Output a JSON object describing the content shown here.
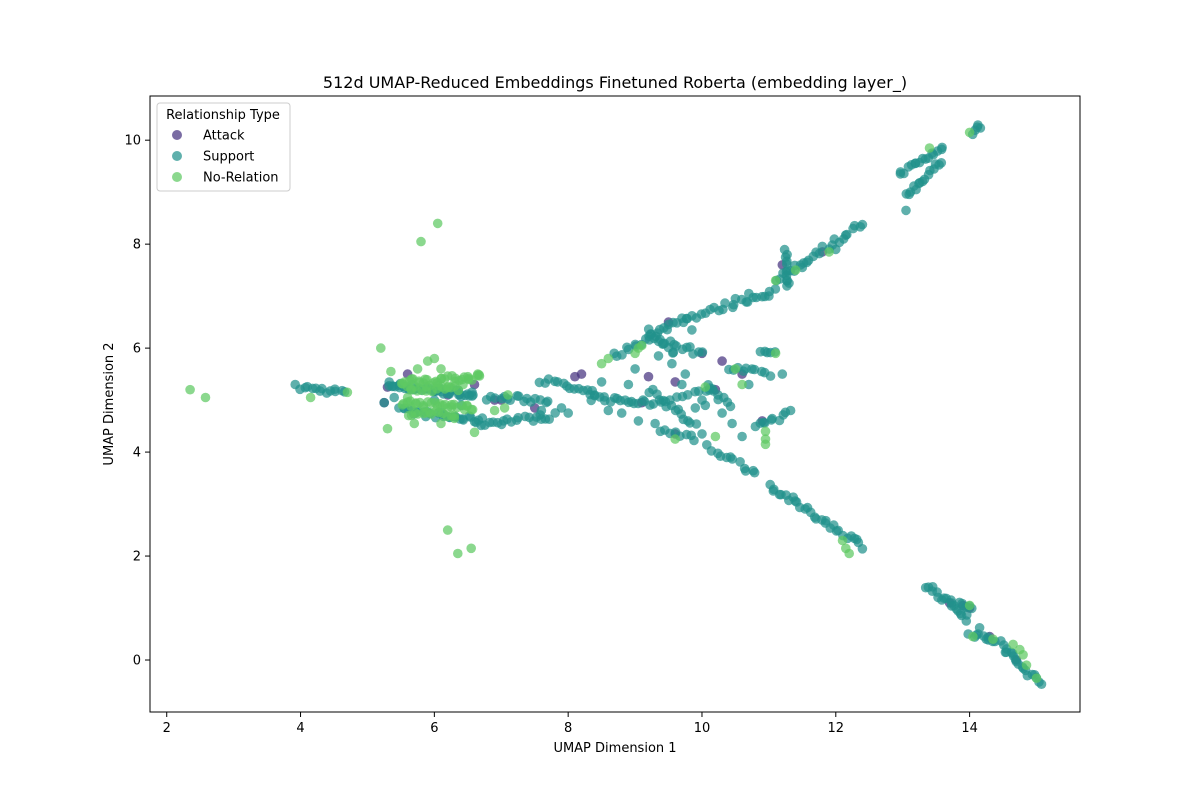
{
  "chart_data": {
    "type": "scatter",
    "title": "512d UMAP-Reduced Embeddings Finetuned Roberta (embedding layer_)",
    "xlabel": "UMAP Dimension 1",
    "ylabel": "UMAP Dimension 2",
    "xlim": [
      1.75,
      15.65
    ],
    "ylim": [
      -1.0,
      10.85
    ],
    "xticks": [
      2,
      4,
      6,
      8,
      10,
      12,
      14
    ],
    "yticks": [
      0,
      2,
      4,
      6,
      8,
      10
    ],
    "grid": false,
    "legend": {
      "title": "Relationship Type",
      "placement": "top-left"
    },
    "series": [
      {
        "name": "Attack",
        "color": "#46337f",
        "points": [
          [
            8.2,
            5.5
          ],
          [
            8.1,
            5.45
          ],
          [
            9.5,
            6.5
          ],
          [
            9.6,
            5.35
          ],
          [
            10.0,
            5.9
          ],
          [
            10.3,
            5.75
          ],
          [
            10.9,
            4.6
          ],
          [
            11.8,
            7.85
          ],
          [
            13.9,
            1.05
          ],
          [
            14.3,
            0.45
          ],
          [
            14.7,
            0.0
          ],
          [
            9.6,
            4.35
          ],
          [
            9.2,
            5.45
          ],
          [
            10.2,
            5.2
          ],
          [
            7.0,
            5.0
          ],
          [
            7.5,
            4.85
          ],
          [
            5.3,
            5.25
          ],
          [
            6.6,
            5.3
          ],
          [
            6.9,
            5.0
          ],
          [
            5.6,
            5.5
          ],
          [
            6.2,
            5.1
          ],
          [
            13.7,
            1.1
          ],
          [
            14.0,
            1.0
          ],
          [
            11.2,
            7.6
          ],
          [
            10.6,
            5.5
          ],
          [
            9.1,
            4.95
          ],
          [
            5.25,
            4.95
          ]
        ]
      },
      {
        "name": "Support",
        "color": "#21918c",
        "segments": [
          {
            "from": [
              3.95,
              5.25
            ],
            "to": [
              4.65,
              5.15
            ],
            "n": 14
          },
          {
            "from": [
              5.3,
              5.3
            ],
            "to": [
              6.6,
              5.1
            ],
            "n": 45
          },
          {
            "from": [
              5.5,
              4.8
            ],
            "to": [
              6.7,
              4.6
            ],
            "n": 30
          },
          {
            "from": [
              6.7,
              4.55
            ],
            "to": [
              7.8,
              4.7
            ],
            "n": 20
          },
          {
            "from": [
              6.8,
              5.05
            ],
            "to": [
              7.7,
              5.0
            ],
            "n": 16
          },
          {
            "from": [
              7.6,
              5.4
            ],
            "to": [
              8.4,
              5.1
            ],
            "n": 14
          },
          {
            "from": [
              8.3,
              5.05
            ],
            "to": [
              9.2,
              4.95
            ],
            "n": 18
          },
          {
            "from": [
              8.7,
              5.85
            ],
            "to": [
              9.75,
              6.6
            ],
            "n": 20
          },
          {
            "from": [
              9.7,
              6.55
            ],
            "to": [
              11.1,
              7.1
            ],
            "n": 22
          },
          {
            "from": [
              11.1,
              7.3
            ],
            "to": [
              12.4,
              8.4
            ],
            "n": 26
          },
          {
            "from": [
              11.25,
              7.85
            ],
            "to": [
              11.25,
              7.2
            ],
            "n": 10
          },
          {
            "from": [
              12.95,
              9.35
            ],
            "to": [
              13.6,
              9.85
            ],
            "n": 16
          },
          {
            "from": [
              13.05,
              8.95
            ],
            "to": [
              13.6,
              9.6
            ],
            "n": 14
          },
          {
            "from": [
              14.05,
              10.15
            ],
            "to": [
              14.15,
              10.28
            ],
            "n": 5
          },
          {
            "from": [
              9.2,
              6.2
            ],
            "to": [
              10.0,
              5.9
            ],
            "n": 14
          },
          {
            "from": [
              9.2,
              5.2
            ],
            "to": [
              9.9,
              4.5
            ],
            "n": 14
          },
          {
            "from": [
              9.3,
              4.95
            ],
            "to": [
              10.2,
              5.2
            ],
            "n": 12
          },
          {
            "from": [
              10.1,
              4.1
            ],
            "to": [
              10.8,
              3.6
            ],
            "n": 12
          },
          {
            "from": [
              11.0,
              3.35
            ],
            "to": [
              12.4,
              2.2
            ],
            "n": 30
          },
          {
            "from": [
              9.4,
              4.45
            ],
            "to": [
              9.9,
              4.25
            ],
            "n": 8
          },
          {
            "from": [
              10.4,
              5.6
            ],
            "to": [
              11.0,
              5.5
            ],
            "n": 10
          },
          {
            "from": [
              10.8,
              4.5
            ],
            "to": [
              11.3,
              4.75
            ],
            "n": 10
          },
          {
            "from": [
              10.9,
              5.9
            ],
            "to": [
              11.1,
              5.95
            ],
            "n": 5
          },
          {
            "from": [
              13.35,
              1.45
            ],
            "to": [
              13.95,
              0.85
            ],
            "n": 16
          },
          {
            "from": [
              13.75,
              1.1
            ],
            "to": [
              14.05,
              1.05
            ],
            "n": 8
          },
          {
            "from": [
              14.0,
              0.5
            ],
            "to": [
              14.45,
              0.35
            ],
            "n": 10
          },
          {
            "from": [
              14.5,
              0.25
            ],
            "to": [
              15.05,
              -0.45
            ],
            "n": 18
          },
          {
            "from": [
              10.1,
              5.35
            ],
            "to": [
              10.4,
              4.85
            ],
            "n": 8
          },
          {
            "from": [
              9.2,
              6.35
            ],
            "to": [
              9.6,
              5.9
            ],
            "n": 8
          }
        ],
        "points": [
          [
            5.25,
            4.95
          ],
          [
            5.4,
            5.05
          ],
          [
            6.0,
            5.0
          ],
          [
            6.4,
            4.9
          ],
          [
            7.6,
            4.8
          ],
          [
            7.9,
            4.85
          ],
          [
            8.0,
            4.75
          ],
          [
            8.6,
            4.8
          ],
          [
            8.8,
            4.75
          ],
          [
            9.05,
            4.6
          ],
          [
            9.3,
            4.55
          ],
          [
            9.0,
            5.6
          ],
          [
            9.35,
            5.85
          ],
          [
            9.55,
            5.7
          ],
          [
            9.75,
            5.5
          ],
          [
            9.85,
            6.35
          ],
          [
            8.5,
            5.35
          ],
          [
            8.9,
            5.3
          ],
          [
            10.5,
            6.95
          ],
          [
            10.7,
            7.05
          ],
          [
            11.0,
            7.0
          ],
          [
            11.5,
            7.55
          ],
          [
            12.0,
            7.9
          ],
          [
            10.05,
            4.9
          ],
          [
            10.0,
            4.35
          ],
          [
            10.3,
            4.75
          ],
          [
            10.6,
            4.3
          ],
          [
            10.45,
            4.55
          ],
          [
            9.9,
            4.85
          ],
          [
            10.7,
            5.3
          ],
          [
            11.2,
            5.5
          ],
          [
            13.05,
            8.65
          ],
          [
            13.2,
            9.05
          ],
          [
            13.95,
            0.75
          ],
          [
            14.15,
            0.62
          ],
          [
            14.25,
            0.4
          ],
          [
            14.55,
            0.15
          ],
          [
            9.7,
            5.3
          ],
          [
            10.0,
            5.0
          ],
          [
            11.3,
            7.25
          ]
        ]
      },
      {
        "name": "No-Relation",
        "color": "#5ec962",
        "points": [
          [
            2.35,
            5.2
          ],
          [
            2.58,
            5.05
          ],
          [
            5.8,
            8.05
          ],
          [
            6.05,
            8.4
          ],
          [
            5.2,
            6.0
          ],
          [
            6.2,
            2.5
          ],
          [
            6.35,
            2.05
          ],
          [
            6.55,
            2.15
          ],
          [
            5.3,
            4.45
          ],
          [
            6.6,
            4.38
          ],
          [
            5.35,
            5.55
          ],
          [
            5.9,
            5.75
          ],
          [
            6.0,
            5.8
          ],
          [
            5.75,
            5.6
          ],
          [
            6.1,
            5.6
          ],
          [
            6.65,
            5.5
          ],
          [
            6.5,
            5.45
          ],
          [
            5.6,
            5.05
          ],
          [
            5.7,
            4.55
          ],
          [
            6.1,
            4.55
          ],
          [
            6.3,
            4.65
          ],
          [
            4.15,
            5.05
          ],
          [
            4.7,
            5.15
          ],
          [
            7.05,
            4.85
          ],
          [
            7.1,
            5.1
          ],
          [
            8.5,
            5.7
          ],
          [
            9.1,
            6.05
          ],
          [
            9.05,
            6.0
          ],
          [
            9.6,
            4.25
          ],
          [
            10.2,
            4.3
          ],
          [
            10.05,
            5.25
          ],
          [
            10.5,
            5.6
          ],
          [
            10.95,
            4.4
          ],
          [
            10.95,
            4.25
          ],
          [
            10.95,
            4.15
          ],
          [
            11.1,
            5.9
          ],
          [
            11.1,
            7.3
          ],
          [
            11.4,
            7.5
          ],
          [
            12.1,
            2.3
          ],
          [
            12.15,
            2.15
          ],
          [
            12.2,
            2.05
          ],
          [
            13.4,
            9.85
          ],
          [
            14.0,
            10.15
          ],
          [
            14.0,
            1.05
          ],
          [
            14.05,
            0.45
          ],
          [
            14.65,
            0.3
          ],
          [
            14.75,
            0.2
          ],
          [
            14.8,
            0.1
          ],
          [
            14.85,
            -0.1
          ],
          [
            15.0,
            -0.35
          ],
          [
            14.35,
            0.4
          ],
          [
            11.9,
            7.85
          ],
          [
            10.6,
            5.3
          ],
          [
            6.9,
            4.8
          ],
          [
            8.6,
            5.8
          ],
          [
            9.0,
            5.9
          ]
        ],
        "segments": [
          {
            "from": [
              5.5,
              5.35
            ],
            "to": [
              6.7,
              5.45
            ],
            "n": 30
          },
          {
            "from": [
              5.5,
              4.95
            ],
            "to": [
              6.6,
              4.85
            ],
            "n": 28
          },
          {
            "from": [
              5.6,
              5.2
            ],
            "to": [
              6.4,
              5.25
            ],
            "n": 20
          },
          {
            "from": [
              5.6,
              4.7
            ],
            "to": [
              6.3,
              4.75
            ],
            "n": 14
          }
        ]
      }
    ]
  }
}
